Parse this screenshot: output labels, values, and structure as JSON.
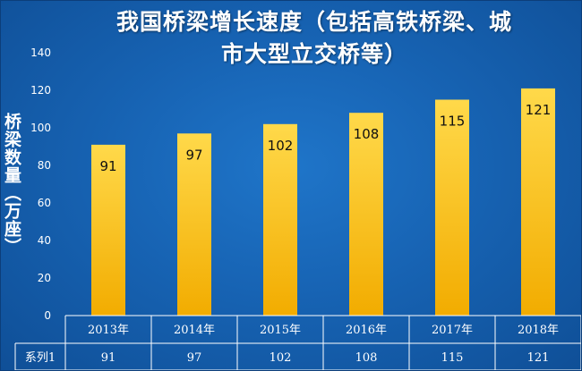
{
  "chart_data": {
    "type": "bar",
    "title": "我国桥梁增长速度（包括高铁桥梁、城市大型立交桥等）",
    "title_lines": [
      "我国桥梁增长速度（包括高铁桥梁、城",
      "市大型立交桥等）"
    ],
    "ylabel": "桥梁数量（万座）",
    "xlabel": "",
    "categories": [
      "2013年",
      "2014年",
      "2015年",
      "2016年",
      "2017年",
      "2018年"
    ],
    "series": [
      {
        "name": "系列1",
        "values": [
          91,
          97,
          102,
          108,
          115,
          121
        ]
      }
    ],
    "ylim": [
      0,
      140
    ],
    "yticks": [
      0,
      20,
      40,
      60,
      80,
      100,
      120,
      140
    ],
    "data_labels": true,
    "grid": false,
    "legend": "none",
    "data_table": true,
    "colors": {
      "bar_top": "#ffd94a",
      "bar_bottom": "#f2ac00",
      "background": "#1763b3"
    }
  }
}
